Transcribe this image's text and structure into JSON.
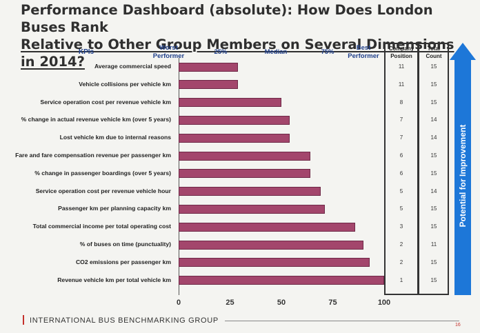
{
  "title": {
    "line1": "Performance Dashboard (absolute): How Does London Buses Rank",
    "line2": "Relative to Other Group Members on Several Dimensions in 2014?"
  },
  "headers": {
    "kpis": "KPIs",
    "worst": "Worst\nPerformer",
    "p25": "25%",
    "median": "Median",
    "p75": "75%",
    "best": "Best\nPerformer",
    "company_position": "Company\nPosition",
    "total_count": "Total\nCount"
  },
  "arrow_label": "Potential for Improvement",
  "footer": {
    "org": "INTERNATIONAL BUS BENCHMARKING GROUP",
    "page": "16"
  },
  "colors": {
    "bar": "#a3466c",
    "bar_border": "#6e2847",
    "header": "#1f3f8a",
    "arrow": "#1d77d8",
    "accent": "#c4302b"
  },
  "chart_data": {
    "type": "bar",
    "orientation": "horizontal",
    "title": "Performance Dashboard (absolute): How Does London Buses Rank Relative to Other Group Members on Several Dimensions in 2014?",
    "xlabel": "",
    "ylabel": "KPIs",
    "xlim": [
      0,
      100
    ],
    "x_ticks": [
      "0",
      "25",
      "50",
      "75",
      "100"
    ],
    "categories": [
      "Average commercial speed",
      "Vehicle collisions per vehicle km",
      "Service operation cost per revenue vehicle km",
      "% change in actual revenue vehicle km (over 5 years)",
      "Lost vehicle km due to internal reasons",
      "Fare and fare compensation revenue per passenger km",
      "% change in passenger boardings (over 5 years)",
      "Service operation cost per revenue vehicle hour",
      "Passenger km per planning capacity km",
      "Total commercial income per total operating cost",
      "% of buses on time (punctuality)",
      "CO2 emissions per passenger km",
      "Revenue vehicle km per total vehicle km"
    ],
    "values": [
      29,
      29,
      50,
      54,
      54,
      64,
      64,
      69,
      71,
      86,
      90,
      93,
      100
    ],
    "company_position": [
      "11",
      "11",
      "8",
      "7",
      "7",
      "6",
      "6",
      "5",
      "5",
      "3",
      "2",
      "2",
      "1"
    ],
    "total_count": [
      "15",
      "15",
      "15",
      "14",
      "14",
      "15",
      "15",
      "14",
      "15",
      "15",
      "11",
      "15",
      "15"
    ]
  }
}
